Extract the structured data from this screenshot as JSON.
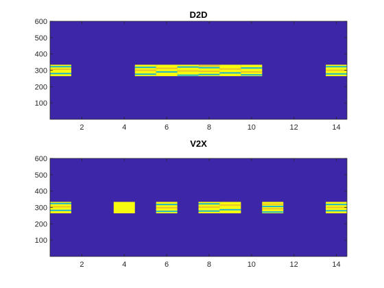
{
  "chart_data": [
    {
      "type": "heatmap",
      "title": "D2D",
      "xlim": [
        0.5,
        14.5
      ],
      "ylim": [
        0,
        600
      ],
      "xticks": [
        2,
        4,
        6,
        8,
        10,
        12,
        14
      ],
      "yticks": [
        100,
        200,
        300,
        400,
        500,
        600
      ],
      "grid": false,
      "colors": {
        "background": "#3e26a8",
        "active": "#f9fb0e",
        "mid": "#e8c42a",
        "stripe": "#1fb5c8"
      },
      "active_band": [
        264,
        334
      ],
      "active_columns": [
        1,
        5,
        6,
        7,
        8,
        9,
        10,
        14
      ],
      "stripe_rows": {
        "1": [
          280,
          306,
          322
        ],
        "5": [
          276,
          300,
          318
        ],
        "6": [
          290,
          312
        ],
        "7": [
          270,
          296,
          320
        ],
        "8": [
          274,
          294,
          316,
          328
        ],
        "9": [
          284,
          308
        ],
        "10": [
          272,
          290,
          314
        ],
        "14": [
          278,
          300,
          322
        ]
      }
    },
    {
      "type": "heatmap",
      "title": "V2X",
      "xlim": [
        0.5,
        14.5
      ],
      "ylim": [
        0,
        600
      ],
      "xticks": [
        2,
        4,
        6,
        8,
        10,
        12,
        14
      ],
      "yticks": [
        100,
        200,
        300,
        400,
        500,
        600
      ],
      "grid": false,
      "colors": {
        "background": "#3e26a8",
        "active": "#f9fb0e",
        "mid": "#e8c42a",
        "stripe": "#1fb5c8"
      },
      "active_band": [
        264,
        334
      ],
      "active_columns": [
        1,
        4,
        6,
        8,
        9,
        11,
        14
      ],
      "stripe_rows": {
        "1": [
          282,
          304,
          324
        ],
        "4": [],
        "6": [
          276,
          298,
          318
        ],
        "8": [
          278,
          302,
          322
        ],
        "9": [
          286,
          314
        ],
        "11": [
          272,
          292,
          306,
          320
        ],
        "14": [
          280,
          300,
          318
        ]
      }
    }
  ]
}
